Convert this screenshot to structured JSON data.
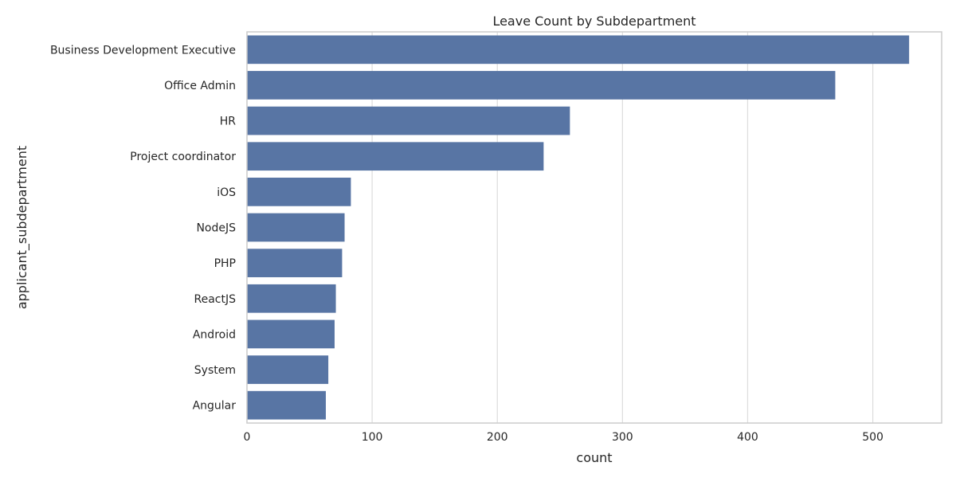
{
  "chart_data": {
    "type": "bar",
    "orientation": "horizontal",
    "title": "Leave Count by Subdepartment",
    "xlabel": "count",
    "ylabel": "applicant_subdepartment",
    "categories": [
      "Business Development Executive",
      "Office Admin",
      "HR",
      "Project coordinator",
      "iOS",
      "NodeJS",
      "PHP",
      "ReactJS",
      "Android",
      "System",
      "Angular"
    ],
    "values": [
      529,
      470,
      258,
      237,
      83,
      78,
      76,
      71,
      70,
      65,
      63
    ],
    "xlim": [
      0,
      555
    ],
    "xticks": [
      0,
      100,
      200,
      300,
      400,
      500
    ],
    "grid": true,
    "bar_color": "#5875a4",
    "grid_color": "#dddddd",
    "axis_color": "#cccccc"
  }
}
